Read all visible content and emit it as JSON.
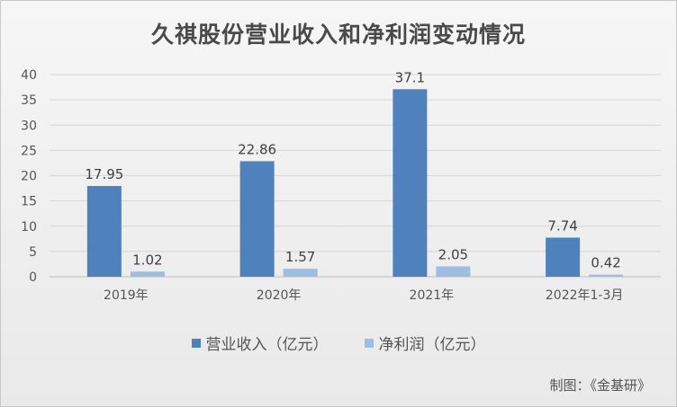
{
  "chart_data": {
    "type": "bar",
    "title": "久祺股份营业收入和净利润变动情况",
    "categories": [
      "2019年",
      "2020年",
      "2021年",
      "2022年1-3月"
    ],
    "series": [
      {
        "name": "营业收入（亿元）",
        "values": [
          17.95,
          22.86,
          37.1,
          7.74
        ],
        "labels": [
          "17.95",
          "22.86",
          "37.1",
          "7.74"
        ],
        "color": "#4f81bd"
      },
      {
        "name": "净利润（亿元）",
        "values": [
          1.02,
          1.57,
          2.05,
          0.42
        ],
        "labels": [
          "1.02",
          "1.57",
          "2.05",
          "0.42"
        ],
        "color": "#9dbde3"
      }
    ],
    "ylim": [
      0,
      40
    ],
    "yticks": [
      "0",
      "5",
      "10",
      "15",
      "20",
      "25",
      "30",
      "35",
      "40"
    ],
    "grid": true,
    "legend_position": "bottom"
  },
  "source": "制图：《金基研》"
}
